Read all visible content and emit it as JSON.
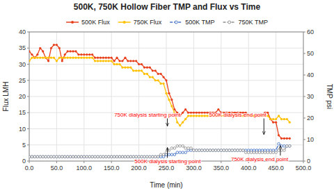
{
  "chart_data": {
    "type": "line",
    "title": "500K, 750K Hollow Fiber TMP and Flux vs Time",
    "x_label": "Time  (min)",
    "y_label": "Flux LMH",
    "y2_label": "TMP psi",
    "xlim": [
      0,
      500
    ],
    "xticks": [
      {
        "value": 0,
        "label": "0.0"
      },
      {
        "value": 50,
        "label": "50.0"
      },
      {
        "value": 100,
        "label": "100.0"
      },
      {
        "value": 150,
        "label": "150.0"
      },
      {
        "value": 200,
        "label": "200.0"
      },
      {
        "value": 250,
        "label": "250.0"
      },
      {
        "value": 300,
        "label": "300.0"
      },
      {
        "value": 350,
        "label": "350.0"
      },
      {
        "value": 400,
        "label": "400.0"
      },
      {
        "value": 450,
        "label": "450.0"
      },
      {
        "value": 500,
        "label": "500.0"
      }
    ],
    "ylim": [
      0,
      40
    ],
    "yticks": [
      0,
      5,
      10,
      15,
      20,
      25,
      30,
      35,
      40
    ],
    "y2lim": [
      0,
      60
    ],
    "y2ticks": [
      0,
      10,
      20,
      30,
      40,
      50,
      60
    ],
    "grid": true,
    "legend": "top",
    "x": [
      0,
      5,
      10,
      15,
      20,
      25,
      30,
      35,
      40,
      45,
      50,
      55,
      60,
      65,
      70,
      75,
      80,
      85,
      90,
      95,
      100,
      105,
      110,
      115,
      120,
      125,
      130,
      135,
      140,
      145,
      150,
      155,
      160,
      165,
      170,
      175,
      180,
      185,
      190,
      195,
      200,
      205,
      210,
      215,
      220,
      225,
      230,
      235,
      240,
      245,
      250,
      255,
      260,
      265,
      270,
      275,
      280,
      285,
      290,
      295,
      300,
      305,
      310,
      315,
      320,
      325,
      330,
      335,
      340,
      345,
      350,
      355,
      360,
      365,
      370,
      375,
      380,
      385,
      390,
      395,
      400,
      405,
      410,
      415,
      420,
      425,
      430,
      435,
      440,
      445,
      450,
      455,
      460,
      465,
      470,
      475
    ],
    "series": [
      {
        "name": "500K Flux",
        "color": "#E8401C",
        "marker": "circle",
        "line_style": "solid",
        "values": [
          34,
          33,
          32,
          33,
          35,
          34,
          32,
          31,
          35,
          36,
          36,
          35,
          31,
          33,
          34,
          34,
          34,
          34,
          33,
          33,
          33,
          33,
          33,
          33,
          32,
          32,
          32,
          32,
          32,
          32,
          32,
          31,
          32,
          31,
          31,
          32,
          31,
          31,
          31,
          31,
          30,
          30,
          29,
          29,
          29,
          28,
          28,
          27,
          27,
          26,
          25,
          21,
          19,
          16,
          15,
          14,
          15,
          16,
          15,
          15,
          15,
          15,
          15,
          15,
          15,
          15,
          15,
          15,
          15,
          16,
          15,
          15,
          15,
          15,
          15,
          15,
          15,
          15,
          15,
          15,
          14,
          14,
          14,
          14,
          14,
          14,
          15,
          15,
          13,
          12,
          12,
          8,
          7,
          7,
          7,
          7
        ]
      },
      {
        "name": "750K Flux",
        "color": "#FFC000",
        "marker": "circle",
        "line_style": "solid",
        "values": [
          31,
          32,
          32,
          32,
          32,
          32,
          32,
          32,
          32,
          32,
          31,
          32,
          32,
          32,
          32,
          32,
          32,
          32,
          32,
          32,
          32,
          32,
          32,
          32,
          31,
          31,
          31,
          31,
          31,
          31,
          31,
          30,
          30,
          30,
          29,
          29,
          29,
          29,
          28,
          28,
          28,
          28,
          27,
          27,
          26,
          26,
          25,
          25,
          24,
          24,
          21,
          19,
          17,
          15,
          12,
          11,
          12,
          13,
          14,
          14,
          14,
          14,
          14,
          14,
          14,
          14,
          14,
          14,
          14,
          14,
          14,
          14,
          14,
          14,
          14,
          14,
          14,
          14,
          14,
          14,
          14,
          14,
          14,
          14,
          14,
          14,
          14,
          14,
          13,
          13,
          13,
          14,
          13,
          13,
          13,
          12
        ]
      },
      {
        "name": "500K TMP",
        "color": "#4472C4",
        "marker": "circle",
        "line_style": "dashed",
        "axis": "y2",
        "values": [
          2,
          2,
          2,
          2,
          2,
          2,
          2,
          2,
          2,
          2,
          2,
          2,
          2,
          2,
          2,
          2,
          2,
          2,
          2,
          2,
          2,
          2,
          2,
          2,
          2,
          2,
          2,
          2,
          2,
          2,
          2,
          2,
          2,
          2,
          2,
          2,
          2,
          2,
          2,
          2,
          2,
          2,
          2,
          2,
          2,
          2,
          2,
          2,
          2,
          2,
          3,
          3,
          3,
          3,
          4,
          4,
          4,
          4,
          5,
          5,
          5,
          5,
          5,
          5,
          5,
          5,
          5,
          5,
          5,
          5,
          5,
          5,
          5,
          5,
          5,
          5,
          5,
          5,
          5,
          5,
          5,
          5,
          5,
          5,
          5,
          5,
          5,
          5,
          5,
          5,
          5,
          8,
          7,
          7,
          7,
          7
        ]
      },
      {
        "name": "750K TMP",
        "color": "#909090",
        "marker": "circle",
        "line_style": "dashed",
        "axis": "y2",
        "values": [
          2,
          2,
          2,
          2,
          2,
          2,
          2,
          2,
          2,
          2,
          2,
          2,
          2,
          2,
          2,
          2,
          2,
          2,
          2,
          2,
          2,
          2,
          2,
          2,
          2,
          2,
          2,
          2,
          2,
          2,
          2,
          2,
          2,
          2,
          2,
          2,
          2,
          2,
          2,
          2,
          2,
          2,
          2,
          2,
          2,
          2,
          2,
          2,
          3,
          3,
          4,
          5,
          6,
          6,
          7,
          7,
          7,
          6,
          6,
          6,
          5,
          5,
          5,
          5,
          5,
          5,
          5,
          5,
          5,
          5,
          5,
          5,
          5,
          5,
          5,
          5,
          5,
          5,
          5,
          4,
          4,
          4,
          4,
          4,
          4,
          4,
          4,
          4,
          4,
          4,
          4,
          5,
          5,
          5,
          7,
          7
        ]
      }
    ],
    "annotations": [
      {
        "text": "750K dialysis starting point",
        "x": 252,
        "y": 10.8,
        "text_x": 155,
        "text_y": 14.5,
        "color": "red"
      },
      {
        "text": "500K dialysis starting point",
        "x": 252,
        "y": 4.2,
        "text_x": 192,
        "text_y": 0.8,
        "color": "red"
      },
      {
        "text": "500K dialysis end point",
        "x": 428,
        "y": 8.2,
        "text_x": 328,
        "text_y": 14.5,
        "color": "red"
      },
      {
        "text": "750K dialysis end point",
        "x": 458,
        "y": 4.8,
        "text_x": 368,
        "text_y": 1.5,
        "color": "red"
      }
    ]
  }
}
